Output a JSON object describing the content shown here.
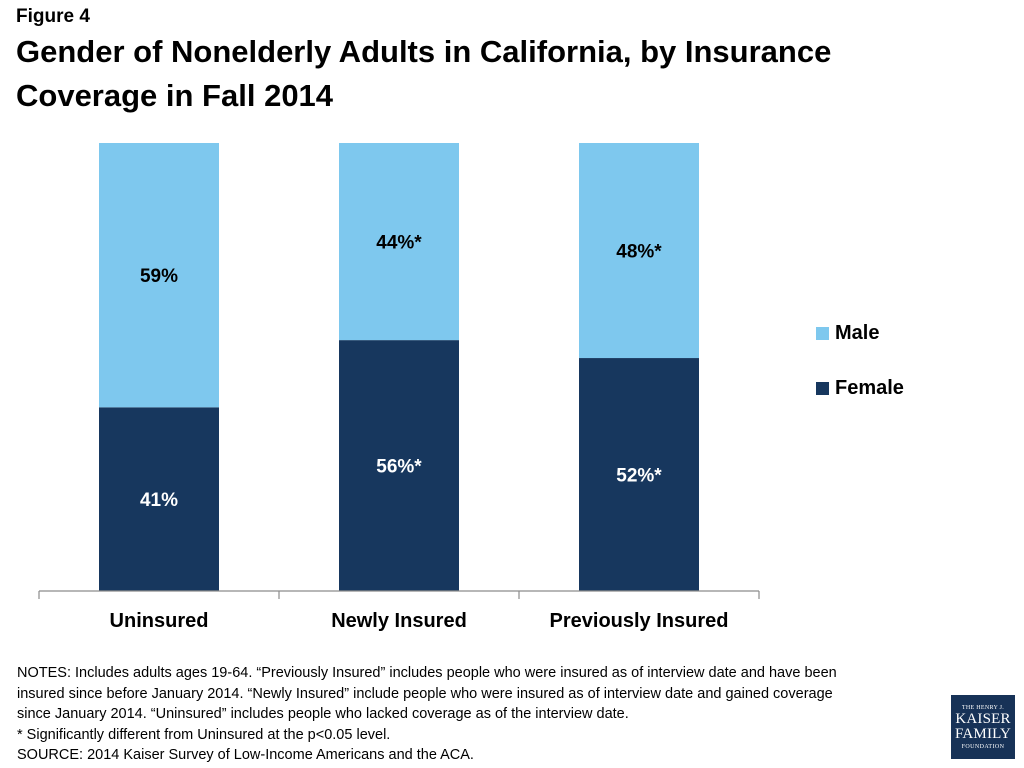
{
  "figure_label": "Figure 4",
  "title_line1": "Gender of Nonelderly Adults in California, by Insurance",
  "title_line2": "Coverage in Fall 2014",
  "chart_data": {
    "type": "bar",
    "stacked": true,
    "categories": [
      "Uninsured",
      "Newly Insured",
      "Previously Insured"
    ],
    "series": [
      {
        "name": "Female",
        "values": [
          41,
          56,
          52
        ],
        "labels": [
          "41%",
          "56%*",
          "52%*"
        ],
        "color": "#17375e",
        "label_color": "#ffffff"
      },
      {
        "name": "Male",
        "values": [
          59,
          44,
          48
        ],
        "labels": [
          "59%",
          "44%*",
          "48%*"
        ],
        "color": "#7ec8ee",
        "label_color": "#000000"
      }
    ],
    "ylim": [
      0,
      100
    ],
    "grid": false,
    "legend_position": "right",
    "legend": [
      "Male",
      "Female"
    ]
  },
  "notes": {
    "line1": "NOTES: Includes adults ages 19-64. “Previously Insured” includes people who were insured as of interview date and have been",
    "line2": "insured since before January 2014. “Newly Insured” include people who were insured as of interview date and gained coverage",
    "line3": "since January 2014. “Uninsured” includes people who lacked coverage as of the interview date.",
    "line4": "* Significantly different from Uninsured at the p<0.05 level.",
    "line5": "SOURCE: 2014 Kaiser Survey of Low-Income Americans and the ACA."
  },
  "logo": {
    "line1": "THE HENRY J.",
    "line2": "KAISER",
    "line3": "FAMILY",
    "line4": "FOUNDATION"
  }
}
